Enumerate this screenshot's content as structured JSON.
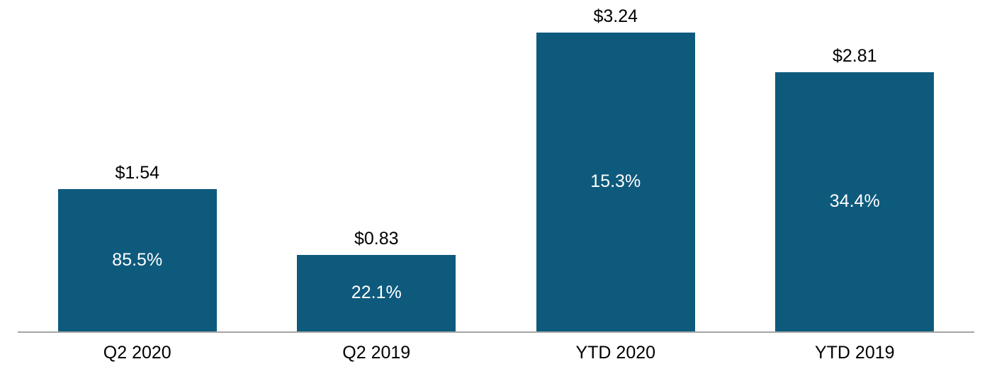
{
  "chart_data": {
    "type": "bar",
    "categories": [
      "Q2 2020",
      "Q2 2019",
      "YTD 2020",
      "YTD 2019"
    ],
    "values": [
      1.54,
      0.83,
      3.24,
      2.81
    ],
    "value_labels": [
      "$1.54",
      "$0.83",
      "$3.24",
      "$2.81"
    ],
    "pct_labels": [
      "85.5%",
      "22.1%",
      "15.3%",
      "34.4%"
    ],
    "title": "",
    "xlabel": "",
    "ylabel": "",
    "ylim": [
      0,
      3.5
    ],
    "grid": false,
    "legend_position": "none",
    "bar_color": "#0e5a7d",
    "value_label_color": "#000000",
    "pct_label_color": "#ffffff",
    "axis_line_color": "#a6a6a6",
    "background_color": "#ffffff"
  }
}
